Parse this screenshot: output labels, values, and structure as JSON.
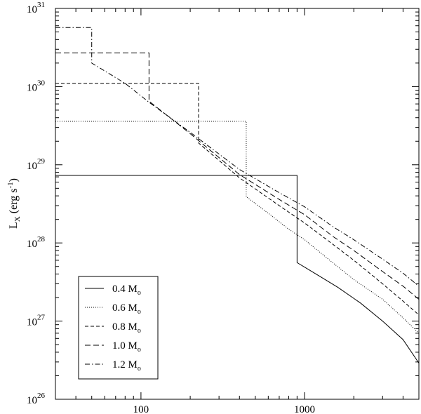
{
  "chart_data": {
    "type": "line",
    "x_scale": "log",
    "y_scale": "log",
    "xlim": [
      30,
      5000
    ],
    "ylim": [
      1e+26,
      1e+31
    ],
    "grid": false,
    "legend_placement": "bottom-left",
    "ylabel": {
      "main": "L",
      "sub": "X",
      "open": " (erg s",
      "exp": "-1",
      "close": ")"
    },
    "x_ticks": [
      {
        "value": 100,
        "label": "100"
      },
      {
        "value": 1000,
        "label": "1000"
      }
    ],
    "y_ticks": [
      {
        "value": 1e+26,
        "base": "10",
        "exp": "26"
      },
      {
        "value": 1e+27,
        "base": "10",
        "exp": "27"
      },
      {
        "value": 1e+28,
        "base": "10",
        "exp": "28"
      },
      {
        "value": 1e+29,
        "base": "10",
        "exp": "29"
      },
      {
        "value": 1e+30,
        "base": "10",
        "exp": "30"
      },
      {
        "value": 1e+31,
        "base": "10",
        "exp": "31"
      }
    ],
    "series": [
      {
        "name": "0.4 M",
        "name_sub": "o",
        "dash": "solid",
        "points": [
          [
            30,
            7.3e+28
          ],
          [
            900,
            7.3e+28
          ],
          [
            900,
            5.6e+27
          ],
          [
            1200,
            3.9e+27
          ],
          [
            1600,
            2.7e+27
          ],
          [
            2200,
            1.7e+27
          ],
          [
            3000,
            1e+27
          ],
          [
            4000,
            5.8e+26
          ],
          [
            5000,
            2.9e+26
          ]
        ]
      },
      {
        "name": "0.6 M",
        "name_sub": "o",
        "dash": "dotted",
        "points": [
          [
            30,
            3.6e+29
          ],
          [
            440,
            3.6e+29
          ],
          [
            440,
            3.9e+28
          ],
          [
            600,
            2.4e+28
          ],
          [
            800,
            1.5e+28
          ],
          [
            1000,
            1.1e+28
          ],
          [
            1500,
            5.5e+27
          ],
          [
            2000,
            3.4e+27
          ],
          [
            3000,
            1.9e+27
          ],
          [
            4000,
            1.1e+27
          ],
          [
            5000,
            7e+26
          ]
        ]
      },
      {
        "name": "0.8 M",
        "name_sub": "o",
        "dash": "dashed",
        "points": [
          [
            30,
            1.1e+30
          ],
          [
            225,
            1.1e+30
          ],
          [
            225,
            1.9e+29
          ],
          [
            400,
            6.8e+28
          ],
          [
            700,
            3e+28
          ],
          [
            1000,
            1.8e+28
          ],
          [
            1500,
            9.5e+27
          ],
          [
            2000,
            6e+27
          ],
          [
            3000,
            3e+27
          ],
          [
            4000,
            1.8e+27
          ],
          [
            5000,
            1.2e+27
          ]
        ]
      },
      {
        "name": "1.0 M",
        "name_sub": "o",
        "dash": "long-dash",
        "points": [
          [
            30,
            2.7e+30
          ],
          [
            112,
            2.7e+30
          ],
          [
            112,
            6.5e+29
          ],
          [
            200,
            2.5e+29
          ],
          [
            400,
            7.5e+28
          ],
          [
            700,
            3.6e+28
          ],
          [
            1000,
            2.3e+28
          ],
          [
            1500,
            1.2e+28
          ],
          [
            2000,
            8e+27
          ],
          [
            3000,
            4.3e+27
          ],
          [
            4000,
            2.8e+27
          ],
          [
            5000,
            1.9e+27
          ]
        ]
      },
      {
        "name": "1.2 M",
        "name_sub": "o",
        "dash": "dash-dot",
        "points": [
          [
            30,
            5.7e+30
          ],
          [
            50,
            5.7e+30
          ],
          [
            50,
            2e+30
          ],
          [
            80,
            1.1e+30
          ],
          [
            112,
            6.3e+29
          ],
          [
            200,
            2.6e+29
          ],
          [
            400,
            8.7e+28
          ],
          [
            700,
            4.4e+28
          ],
          [
            1000,
            2.9e+28
          ],
          [
            1500,
            1.6e+28
          ],
          [
            2000,
            1.1e+28
          ],
          [
            3000,
            6.2e+27
          ],
          [
            4000,
            4.1e+27
          ],
          [
            5000,
            2.8e+27
          ]
        ]
      }
    ]
  }
}
